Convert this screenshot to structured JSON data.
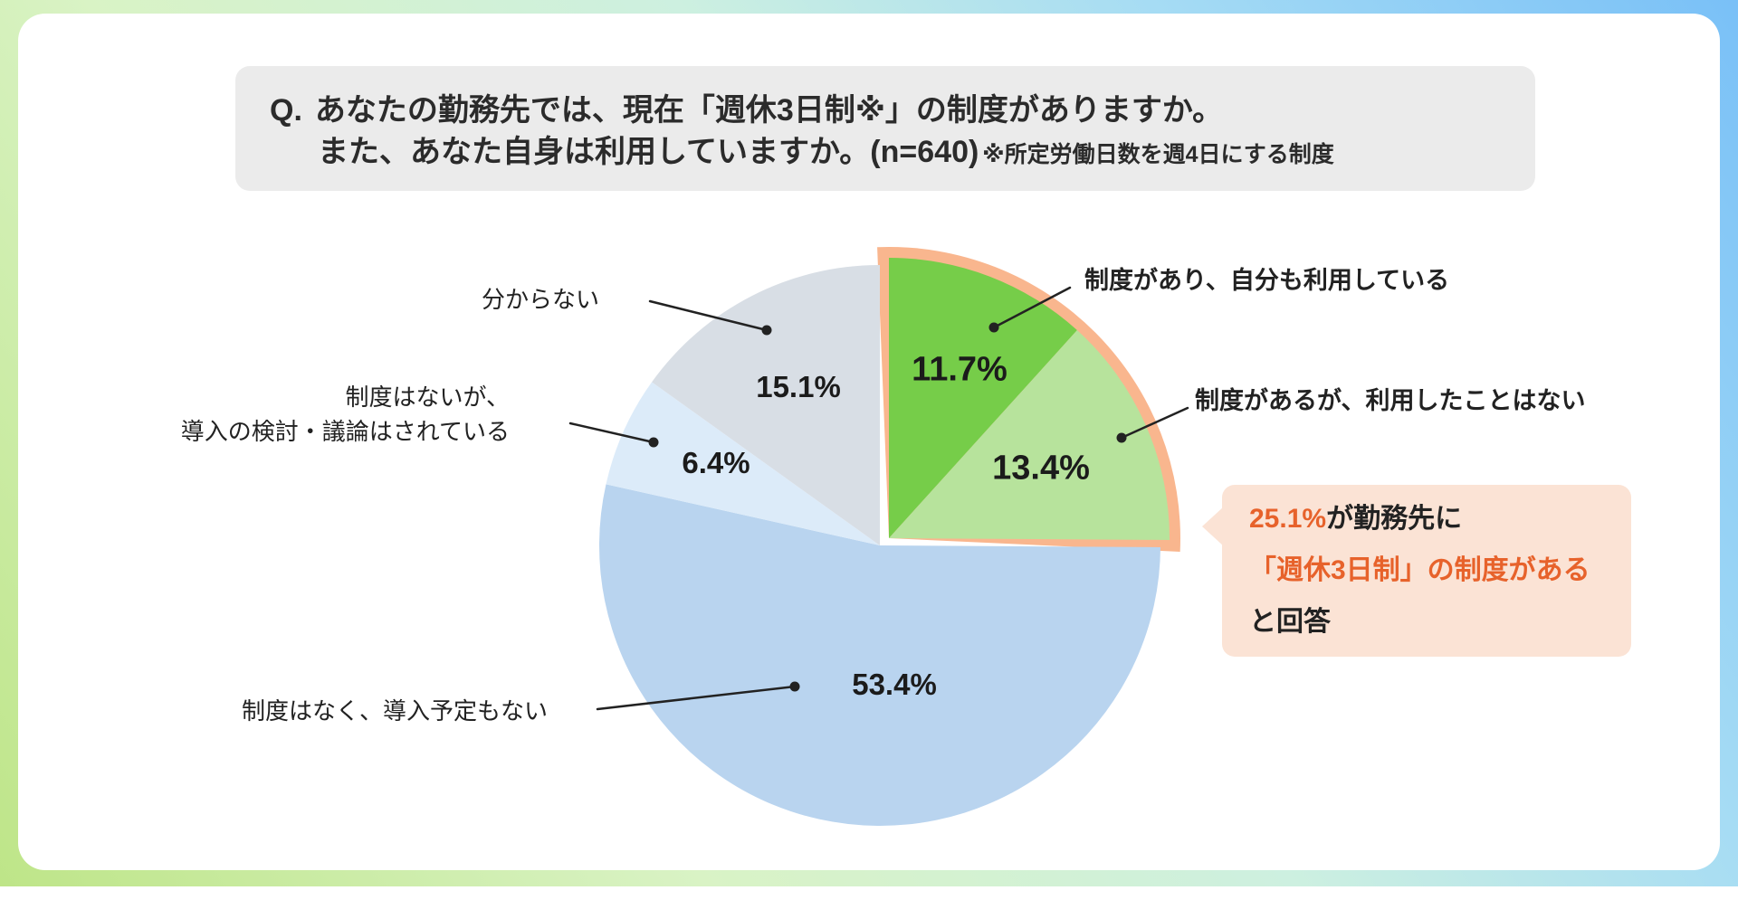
{
  "question": {
    "prefix": "Q.",
    "line1": "あなたの勤務先では、現在「週休3日制※」の制度がありますか。",
    "line2": "また、あなた自身は利用していますか。(n=640)",
    "note": "※所定労働日数を週4日にする制度"
  },
  "callout": {
    "highlight_value": "25.1%",
    "line1_rest": "が勤務先に",
    "line2": "「週休3日制」の制度がある",
    "line3": "と回答",
    "accent_color": "#e7622b",
    "bg_color": "#fbe3d5"
  },
  "chart_data": {
    "type": "pie",
    "sample_label": "(n=640)",
    "start_angle_deg": 0,
    "direction": "clockwise",
    "highlight_outline_color": "#f9b68e",
    "highlight_total": 25.1,
    "slices": [
      {
        "label": "制度があり、自分も利用している",
        "value": 11.7,
        "value_label": "11.7%",
        "color": "#76cd49",
        "highlighted": true
      },
      {
        "label": "制度があるが、利用したことはない",
        "value": 13.4,
        "value_label": "13.4%",
        "color": "#b7e39c",
        "highlighted": true
      },
      {
        "label": "制度はなく、導入予定もない",
        "value": 53.4,
        "value_label": "53.4%",
        "color": "#b9d4ef",
        "highlighted": false
      },
      {
        "label": "制度はないが、導入の検討・議論はされている",
        "label_lines": [
          "制度はないが、",
          "導入の検討・議論はされている"
        ],
        "value": 6.4,
        "value_label": "6.4%",
        "color": "#dcebf9",
        "highlighted": false
      },
      {
        "label": "分からない",
        "value": 15.1,
        "value_label": "15.1%",
        "color": "#d8dee5",
        "highlighted": false
      }
    ]
  }
}
